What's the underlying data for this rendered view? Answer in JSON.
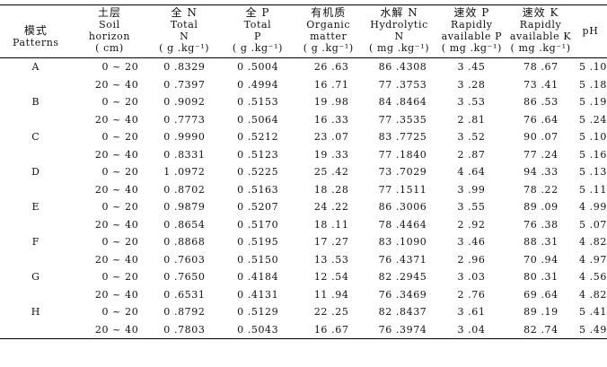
{
  "headers": [
    {
      "zh": "模式",
      "en": [
        "Patterns"
      ],
      "unit": ""
    },
    {
      "zh": "土层",
      "en": [
        "Soil",
        "horizon"
      ],
      "unit": "( cm)"
    },
    {
      "zh": "全 N",
      "en": [
        "Total",
        "N"
      ],
      "unit": "( g .kg⁻¹)"
    },
    {
      "zh": "全 P",
      "en": [
        "Total",
        "P"
      ],
      "unit": "( g .kg⁻¹)"
    },
    {
      "zh": "有机质",
      "en": [
        "Organic",
        "matter"
      ],
      "unit": "( g .kg⁻¹)"
    },
    {
      "zh": "水解 N",
      "en": [
        "Hydrolytic",
        "N"
      ],
      "unit": "( mg .kg⁻¹)"
    },
    {
      "zh": "速效 P",
      "en": [
        "Rapidly",
        "available P"
      ],
      "unit": "( mg .kg⁻¹)"
    },
    {
      "zh": "速效 K",
      "en": [
        "Rapidly",
        "available K"
      ],
      "unit": "( mg .kg⁻¹)"
    },
    {
      "zh": "",
      "en": [
        "pH"
      ],
      "unit": ""
    }
  ],
  "rows": [
    {
      "pattern": "A",
      "horizon": "0 ~ 20",
      "n": "0 .8329",
      "p": "0 .5004",
      "om": "26 .63",
      "hn": "86 .4308",
      "ap": "3 .45",
      "ak": "78 .67",
      "ph": "5 .10"
    },
    {
      "pattern": "",
      "horizon": "20 ~ 40",
      "n": "0 .7397",
      "p": "0 .4994",
      "om": "16 .71",
      "hn": "77 .3753",
      "ap": "3 .28",
      "ak": "73 .41",
      "ph": "5 .18"
    },
    {
      "pattern": "B",
      "horizon": "0 ~ 20",
      "n": "0 .9092",
      "p": "0 .5153",
      "om": "19 .98",
      "hn": "84 .8464",
      "ap": "3 .53",
      "ak": "86 .53",
      "ph": "5 .19"
    },
    {
      "pattern": "",
      "horizon": "20 ~ 40",
      "n": "0 .7773",
      "p": "0 .5064",
      "om": "16 .33",
      "hn": "77 .3535",
      "ap": "2 .81",
      "ak": "76 .64",
      "ph": "5 .24"
    },
    {
      "pattern": "C",
      "horizon": "0 ~ 20",
      "n": "0 .9990",
      "p": "0 .5212",
      "om": "23 .07",
      "hn": "83 .7725",
      "ap": "3 .52",
      "ak": "90 .07",
      "ph": "5 .10"
    },
    {
      "pattern": "",
      "horizon": "20 ~ 40",
      "n": "0 .8331",
      "p": "0 .5123",
      "om": "19 .33",
      "hn": "77 .1840",
      "ap": "2 .87",
      "ak": "77 .24",
      "ph": "5 .16"
    },
    {
      "pattern": "D",
      "horizon": "0 ~ 20",
      "n": "1 .0972",
      "p": "0 .5225",
      "om": "25 .42",
      "hn": "73 .7029",
      "ap": "4 .64",
      "ak": "94 .33",
      "ph": "5 .13"
    },
    {
      "pattern": "",
      "horizon": "20 ~ 40",
      "n": "0 .8702",
      "p": "0 .5163",
      "om": "18 .28",
      "hn": "77 .1511",
      "ap": "3 .99",
      "ak": "78 .22",
      "ph": "5 .11"
    },
    {
      "pattern": "E",
      "horizon": "0 ~ 20",
      "n": "0 .9879",
      "p": "0 .5207",
      "om": "24 .22",
      "hn": "86 .3006",
      "ap": "3 .55",
      "ak": "89 .09",
      "ph": "4 .99"
    },
    {
      "pattern": "",
      "horizon": "20 ~ 40",
      "n": "0 .8654",
      "p": "0 .5170",
      "om": "18 .11",
      "hn": "78 .4464",
      "ap": "2 .92",
      "ak": "76 .38",
      "ph": "5 .07"
    },
    {
      "pattern": "F",
      "horizon": "0 ~ 20",
      "n": "0 .8868",
      "p": "0 .5195",
      "om": "17 .27",
      "hn": "83 .1090",
      "ap": "3 .46",
      "ak": "88 .31",
      "ph": "4 .82"
    },
    {
      "pattern": "",
      "horizon": "20 ~ 40",
      "n": "0 .7603",
      "p": "0 .5150",
      "om": "13 .53",
      "hn": "76 .4371",
      "ap": "2 .96",
      "ak": "70 .94",
      "ph": "4 .97"
    },
    {
      "pattern": "G",
      "horizon": "0 ~ 20",
      "n": "0 .7650",
      "p": "0 .4184",
      "om": "12 .54",
      "hn": "82 .2945",
      "ap": "3 .03",
      "ak": "80 .31",
      "ph": "4 .56"
    },
    {
      "pattern": "",
      "horizon": "20 ~ 40",
      "n": "0 .6531",
      "p": "0 .4131",
      "om": "11 .94",
      "hn": "76 .3469",
      "ap": "2 .76",
      "ak": "69 .64",
      "ph": "4 .82"
    },
    {
      "pattern": "H",
      "horizon": "0 ~ 20",
      "n": "0 .8792",
      "p": "0 .5129",
      "om": "22 .25",
      "hn": "82 .8437",
      "ap": "3 .61",
      "ak": "89 .19",
      "ph": "5 .41"
    },
    {
      "pattern": "",
      "horizon": "20 ~ 40",
      "n": "0 .7803",
      "p": "0 .5043",
      "om": "16 .67",
      "hn": "76 .3974",
      "ap": "3 .04",
      "ak": "82 .74",
      "ph": "5 .49"
    }
  ]
}
